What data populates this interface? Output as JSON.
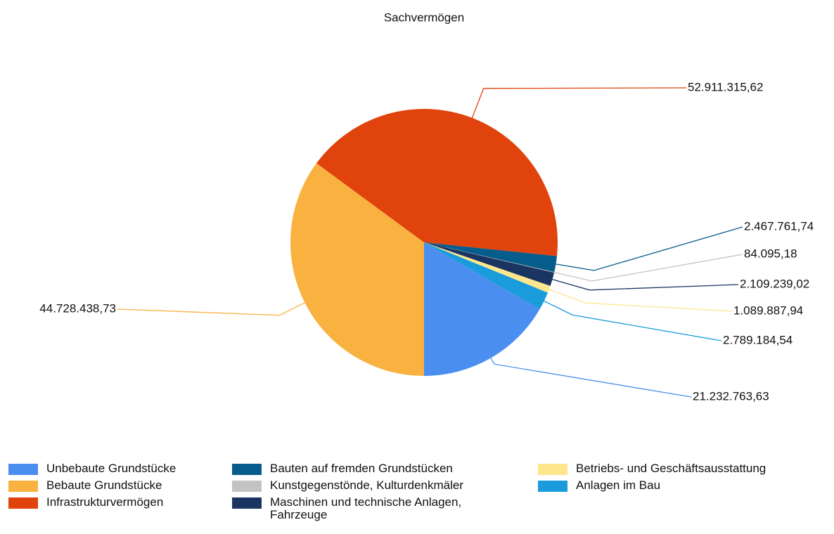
{
  "chart_data": {
    "type": "pie",
    "title": "Sachvermögen",
    "categories": [
      "Unbebaute Grundstücke",
      "Bebaute Grundstücke",
      "Infrastrukturvermögen",
      "Bauten auf fremden Grundstücken",
      "Kunstgegenstönde, Kulturdenkmäler",
      "Maschinen und technische Anlagen, Fahrzeuge",
      "Betriebs- und Geschäftsausstattung",
      "Anlagen im Bau"
    ],
    "values": [
      21232763.63,
      44728438.73,
      52911315.62,
      2467761.74,
      84095.18,
      2109239.02,
      1089887.94,
      2789184.54
    ],
    "value_labels": [
      "21.232.763,63",
      "44.728.438,73",
      "52.911.315,62",
      "2.467.761,74",
      "84.095,18",
      "2.109.239,02",
      "1.089.887,94",
      "2.789.184,54"
    ],
    "colors": [
      "#4a8ff0",
      "#f9b140",
      "#e0430b",
      "#065d8b",
      "#c3c3c3",
      "#1b3563",
      "#fde68c",
      "#1a9bdb"
    ],
    "legend": "bottom"
  }
}
